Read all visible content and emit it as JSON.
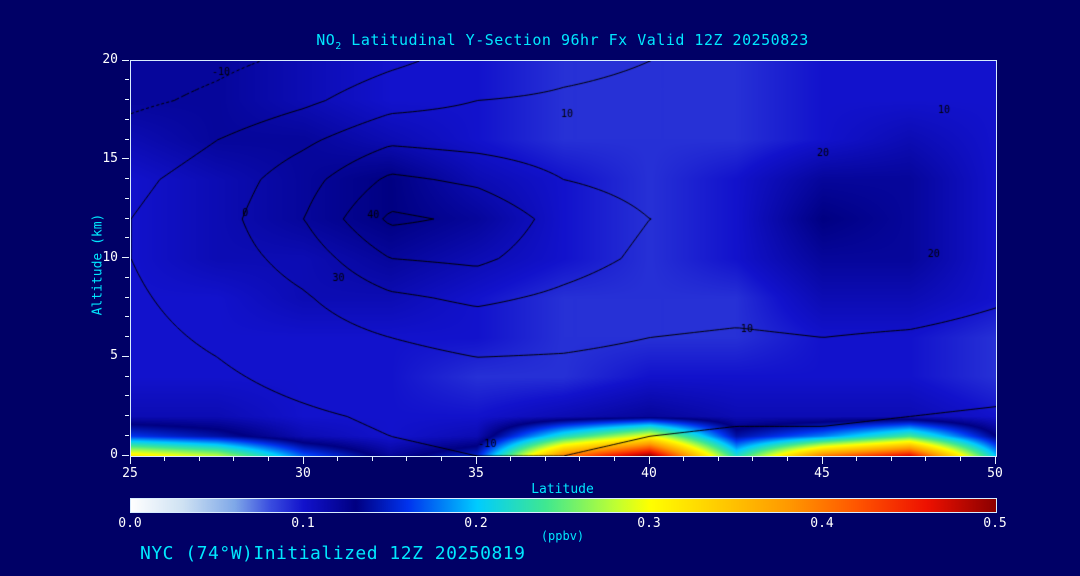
{
  "title": {
    "prefix": "NO",
    "sub": "2",
    "rest": " Latitudinal Y-Section 96hr  Fx Valid 12Z 20250823"
  },
  "footer": "NYC (74°W)Initialized 12Z 20250819",
  "colors": {
    "background": "#000066",
    "title_text": "#00e8ff",
    "tick_text": "#ffffff",
    "frame": "#d8ecff",
    "contour_line": "#000000"
  },
  "axes": {
    "x": {
      "label": "Latitude",
      "min": 25,
      "max": 50,
      "major_ticks": [
        25,
        30,
        35,
        40,
        45,
        50
      ],
      "minor_step": 1
    },
    "y": {
      "label": "Altitude (km)",
      "min": 0,
      "max": 20,
      "major_ticks": [
        0,
        5,
        10,
        15,
        20
      ],
      "minor_step": 1
    }
  },
  "colorbar": {
    "min": 0.0,
    "max": 0.5,
    "tick_labels": [
      "0.0",
      "0.1",
      "0.2",
      "0.3",
      "0.4",
      "0.5"
    ],
    "units": "(ppbv)",
    "stops": [
      [
        0.0,
        "#ffffff"
      ],
      [
        0.03,
        "#cfe2f3"
      ],
      [
        0.06,
        "#7fa8e8"
      ],
      [
        0.08,
        "#3b4fe0"
      ],
      [
        0.1,
        "#1212cc"
      ],
      [
        0.13,
        "#000082"
      ],
      [
        0.16,
        "#0033ee"
      ],
      [
        0.2,
        "#00ccff"
      ],
      [
        0.24,
        "#40e890"
      ],
      [
        0.28,
        "#bfff33"
      ],
      [
        0.3,
        "#ffff00"
      ],
      [
        0.34,
        "#ffcc00"
      ],
      [
        0.38,
        "#ff9900"
      ],
      [
        0.42,
        "#ff5500"
      ],
      [
        0.46,
        "#ee1100"
      ],
      [
        0.5,
        "#8b0000"
      ]
    ]
  },
  "chart_data": {
    "type": "heatmap",
    "title": "NO2 Latitudinal Y-Section 96hr  Fx Valid 12Z 20250823",
    "xlabel": "Latitude",
    "ylabel": "Altitude (km)",
    "xlim": [
      25,
      50
    ],
    "ylim": [
      0,
      20
    ],
    "x_lats": [
      25,
      27.5,
      30,
      32.5,
      35,
      37.5,
      40,
      42.5,
      45,
      47.5,
      50
    ],
    "y_alts": [
      20,
      18,
      16,
      14,
      12,
      10,
      8,
      6,
      4,
      2,
      1,
      0
    ],
    "no2_ppbv": [
      [
        0.12,
        0.12,
        0.11,
        0.1,
        0.1,
        0.09,
        0.09,
        0.09,
        0.1,
        0.1,
        0.1
      ],
      [
        0.12,
        0.12,
        0.11,
        0.1,
        0.1,
        0.09,
        0.09,
        0.09,
        0.1,
        0.1,
        0.1
      ],
      [
        0.11,
        0.12,
        0.12,
        0.11,
        0.1,
        0.09,
        0.09,
        0.09,
        0.1,
        0.11,
        0.1
      ],
      [
        0.1,
        0.11,
        0.12,
        0.13,
        0.11,
        0.1,
        0.09,
        0.1,
        0.12,
        0.12,
        0.1
      ],
      [
        0.1,
        0.11,
        0.12,
        0.13,
        0.12,
        0.1,
        0.09,
        0.1,
        0.13,
        0.12,
        0.1
      ],
      [
        0.1,
        0.11,
        0.11,
        0.12,
        0.11,
        0.1,
        0.09,
        0.1,
        0.12,
        0.12,
        0.1
      ],
      [
        0.1,
        0.1,
        0.11,
        0.11,
        0.1,
        0.09,
        0.09,
        0.09,
        0.11,
        0.11,
        0.1
      ],
      [
        0.1,
        0.1,
        0.1,
        0.1,
        0.1,
        0.09,
        0.09,
        0.09,
        0.1,
        0.1,
        0.09
      ],
      [
        0.1,
        0.1,
        0.1,
        0.1,
        0.09,
        0.09,
        0.1,
        0.1,
        0.1,
        0.1,
        0.09
      ],
      [
        0.11,
        0.11,
        0.1,
        0.1,
        0.1,
        0.11,
        0.12,
        0.11,
        0.11,
        0.11,
        0.1
      ],
      [
        0.16,
        0.14,
        0.11,
        0.1,
        0.11,
        0.22,
        0.3,
        0.14,
        0.18,
        0.24,
        0.13
      ],
      [
        0.32,
        0.28,
        0.17,
        0.12,
        0.15,
        0.4,
        0.5,
        0.22,
        0.4,
        0.47,
        0.2
      ]
    ],
    "contour_overlay": {
      "levels": [
        -10,
        0,
        10,
        20,
        30,
        40
      ],
      "negative_style": "dashed",
      "values": [
        [
          -15,
          -12,
          -8,
          -2,
          4,
          8,
          10,
          11,
          12,
          12,
          11
        ],
        [
          -12,
          -8,
          -2,
          6,
          10,
          11,
          12,
          13,
          14,
          14,
          12
        ],
        [
          -6,
          0,
          8,
          18,
          16,
          14,
          14,
          15,
          17,
          18,
          15
        ],
        [
          -2,
          4,
          16,
          32,
          28,
          20,
          17,
          17,
          19,
          19,
          16
        ],
        [
          0,
          6,
          20,
          42,
          38,
          26,
          20,
          18,
          20,
          20,
          16
        ],
        [
          0,
          5,
          14,
          30,
          32,
          24,
          18,
          16,
          18,
          18,
          14
        ],
        [
          -1,
          3,
          9,
          18,
          22,
          18,
          14,
          13,
          14,
          14,
          11
        ],
        [
          -2,
          1,
          5,
          10,
          13,
          12,
          10,
          9,
          10,
          9,
          7
        ],
        [
          -3,
          -1,
          2,
          5,
          7,
          7,
          6,
          5,
          5,
          4,
          3
        ],
        [
          -4,
          -3,
          -1,
          1,
          3,
          3,
          2,
          1,
          1,
          0,
          -1
        ],
        [
          -5,
          -4,
          -2,
          0,
          1,
          1,
          0,
          -1,
          -1,
          -2,
          -3
        ],
        [
          -6,
          -5,
          -3,
          -1,
          0,
          0,
          -1,
          -2,
          -3,
          -4,
          -5
        ]
      ],
      "labels": [
        {
          "text": "-10",
          "lat": 27.6,
          "alt": 19.4
        },
        {
          "text": "10",
          "lat": 37.6,
          "alt": 17.3
        },
        {
          "text": "10",
          "lat": 48.5,
          "alt": 17.5
        },
        {
          "text": "20",
          "lat": 45.0,
          "alt": 15.3
        },
        {
          "text": "20",
          "lat": 48.2,
          "alt": 10.2
        },
        {
          "text": "0",
          "lat": 28.3,
          "alt": 12.3
        },
        {
          "text": "40",
          "lat": 32.0,
          "alt": 12.2
        },
        {
          "text": "30",
          "lat": 31.0,
          "alt": 9.0
        },
        {
          "text": "10",
          "lat": 42.8,
          "alt": 6.4
        },
        {
          "text": "-10",
          "lat": 35.3,
          "alt": 0.6
        }
      ]
    }
  }
}
